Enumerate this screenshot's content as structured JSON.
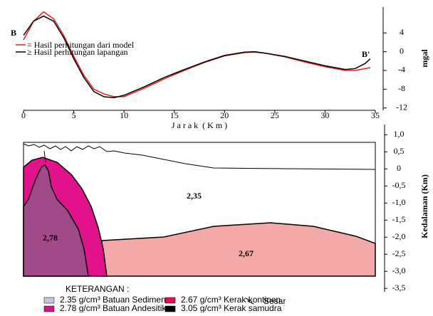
{
  "chart_data": [
    {
      "type": "line",
      "x_label": "J a r a k  ( K m )",
      "y_label": "mgal",
      "point_labels": [
        "B",
        "B'"
      ],
      "x": [
        0,
        1,
        2,
        3,
        4,
        5,
        6,
        7,
        8,
        9,
        10,
        12,
        14,
        16,
        18,
        20,
        22,
        23,
        24,
        26,
        28,
        30,
        32,
        33,
        34,
        34.5
      ],
      "series": [
        {
          "name": "= Hasil perhitungan dari model",
          "color": "#e02020",
          "values": [
            2.5,
            6.5,
            8.5,
            7,
            3.5,
            -1,
            -5,
            -8,
            -9,
            -9.6,
            -9.6,
            -7.8,
            -5.8,
            -4,
            -2.3,
            -0.9,
            -0.2,
            -0.1,
            -0.3,
            -1.1,
            -2.2,
            -3.2,
            -4,
            -4,
            -3.6,
            -3.4
          ]
        },
        {
          "name": "≥ Hasil perhitungan lapangan",
          "color": "#000000",
          "values": [
            3.5,
            6.5,
            7.6,
            6.5,
            3,
            -1.5,
            -5.5,
            -8.5,
            -9.6,
            -9.8,
            -9.3,
            -7.5,
            -5.5,
            -3.8,
            -2.2,
            -0.8,
            -0.1,
            0,
            -0.3,
            -1,
            -2,
            -3,
            -3.8,
            -3.6,
            -2.5,
            -1.5
          ]
        }
      ],
      "xlim": [
        0,
        35
      ],
      "xticks": [
        0,
        5,
        10,
        15,
        20,
        25,
        30,
        35
      ],
      "ylim": [
        -12.5,
        9.5
      ],
      "yticks": [
        4,
        0,
        -4,
        -8,
        -12
      ]
    },
    {
      "type": "section",
      "y_label": "Kedalaman (Km)",
      "ylim": [
        -3.6,
        1.3
      ],
      "yticks": [
        {
          "value": 1,
          "label": "1,0"
        },
        {
          "value": 0.5,
          "label": "0,5"
        },
        0,
        {
          "value": -0.5,
          "label": "-0,5"
        },
        {
          "value": -1,
          "label": "-1,0"
        },
        {
          "value": -1.5,
          "label": "-1,5"
        },
        {
          "value": -2,
          "label": "-2,0"
        },
        {
          "value": -2.5,
          "label": "-2,5"
        },
        {
          "value": -3,
          "label": "-3,0"
        },
        {
          "value": -3.5,
          "label": "-3,5"
        }
      ],
      "region_labels": [
        "2,35",
        "2,78",
        "2,67"
      ],
      "legend_title": "KETERANGAN :",
      "legend": [
        {
          "label": "2.35 g/cm³ Batuan Sedimen",
          "color": "#c9c3e3"
        },
        {
          "label": "2.78 g/cm³ Batuan Andesitik",
          "color": "#d0158a"
        },
        {
          "label": "2.67 g/cm³ Kerak kontinen",
          "color": "#e0135a"
        },
        {
          "label": "3.05 g/cm³ Kerak samudra",
          "color": "#000000"
        }
      ],
      "fault_label": "Sesar"
    }
  ]
}
